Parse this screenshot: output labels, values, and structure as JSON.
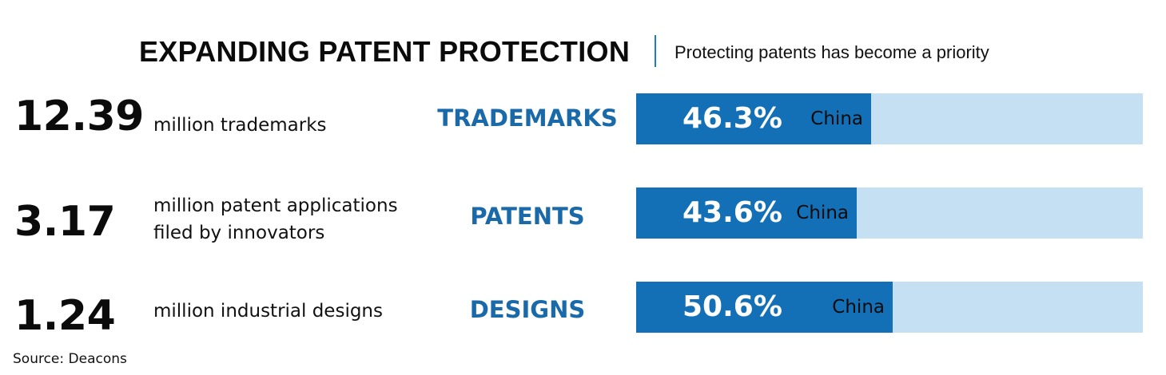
{
  "title": "EXPANDING PATENT PROTECTION",
  "subtitle": "Protecting patents has become a priority",
  "source": "Source: Deacons",
  "colors": {
    "bar_fill": "#1370b6",
    "bar_track": "#c5dff3",
    "category_text": "#1a6aaa",
    "divider": "#1f7cc4"
  },
  "chart_data": {
    "type": "bar",
    "orientation": "horizontal",
    "title": "EXPANDING PATENT PROTECTION",
    "subtitle": "Protecting patents has become a priority",
    "categories": [
      "TRADEMARKS",
      "PATENTS",
      "DESIGNS"
    ],
    "values": [
      46.3,
      43.6,
      50.6
    ],
    "value_labels": [
      "46.3%",
      "43.6%",
      "50.6%"
    ],
    "bar_label": "China",
    "xlim": [
      0,
      100
    ],
    "grid": false,
    "rows": [
      {
        "figure": "12.39",
        "description": "million trademarks",
        "category": "TRADEMARKS",
        "value": 46.3,
        "value_label": "46.3%",
        "bar_label": "China"
      },
      {
        "figure": "3.17",
        "description": "million patent applications filed by innovators",
        "category": "PATENTS",
        "value": 43.6,
        "value_label": "43.6%",
        "bar_label": "China"
      },
      {
        "figure": "1.24",
        "description": "million industrial designs",
        "category": "DESIGNS",
        "value": 50.6,
        "value_label": "50.6%",
        "bar_label": "China"
      }
    ]
  }
}
